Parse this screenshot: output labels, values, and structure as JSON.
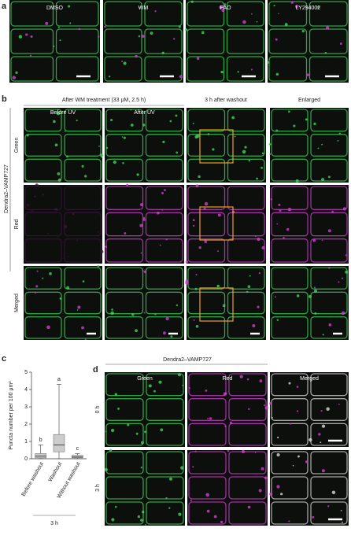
{
  "panel_a": {
    "label": "a",
    "images": [
      "DMSO",
      "WM",
      "PAO",
      "LY294002"
    ]
  },
  "panel_b": {
    "label": "b",
    "header": "After WM treatment (33 μM, 2.5 h)",
    "columns": [
      "Before UV",
      "After UV",
      "3 h after washout",
      "Enlarged"
    ],
    "rows": [
      "Green",
      "Red",
      "Merged"
    ],
    "construct": "Dendra2–VAMP727"
  },
  "chart_data": {
    "type": "box",
    "label": "c",
    "ylabel": "Puncta number per 100 μm²",
    "xlabel": "3 h",
    "categories": [
      "Before washout",
      "Washout",
      "Without washout"
    ],
    "boxes": [
      {
        "min": 0,
        "q1": 0.05,
        "median": 0.15,
        "q3": 0.3,
        "max": 0.8,
        "letter": "b"
      },
      {
        "min": 0,
        "q1": 0.4,
        "median": 0.8,
        "q3": 1.4,
        "max": 4.3,
        "letter": "a"
      },
      {
        "min": 0,
        "q1": 0.05,
        "median": 0.1,
        "q3": 0.2,
        "max": 0.3,
        "letter": "c"
      }
    ],
    "color": "#cccccc",
    "ylim": [
      0,
      5
    ],
    "yticks": [
      0,
      1,
      2,
      3,
      4,
      5
    ]
  },
  "panel_d": {
    "label": "d",
    "construct": "Dendra2–VAMP727",
    "columns": [
      "Green",
      "Red",
      "Merged"
    ],
    "rows": [
      "0 h",
      "3 h"
    ]
  }
}
